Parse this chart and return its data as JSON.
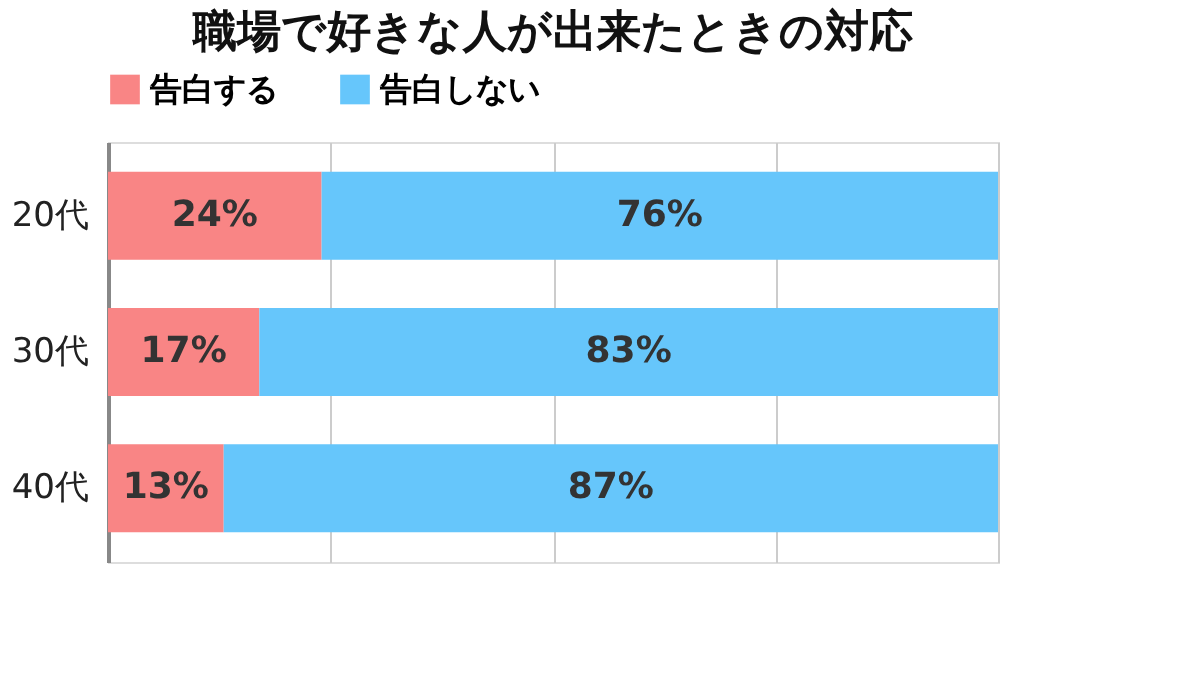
{
  "chart_data": {
    "type": "bar",
    "orientation": "horizontal",
    "stacked": true,
    "title": "職場で好きな人が出来たときの対応",
    "categories": [
      "20代",
      "30代",
      "40代"
    ],
    "series": [
      {
        "name": "告白する",
        "color": "#f98585",
        "values": [
          24,
          17,
          13
        ],
        "value_labels": [
          "24%",
          "17%",
          "13%"
        ]
      },
      {
        "name": "告白しない",
        "color": "#66c6fb",
        "values": [
          76,
          83,
          87
        ],
        "value_labels": [
          "76%",
          "83%",
          "87%"
        ]
      }
    ],
    "xlim": [
      0,
      100
    ],
    "xticks": [
      {
        "value": 0,
        "label": null
      },
      {
        "value": 25,
        "label": null
      },
      {
        "value": 50,
        "label": null
      },
      {
        "value": 75,
        "label": null
      },
      {
        "value": 100,
        "label": null
      }
    ],
    "grid": "x",
    "legend": "top",
    "tick_labels": "y"
  }
}
